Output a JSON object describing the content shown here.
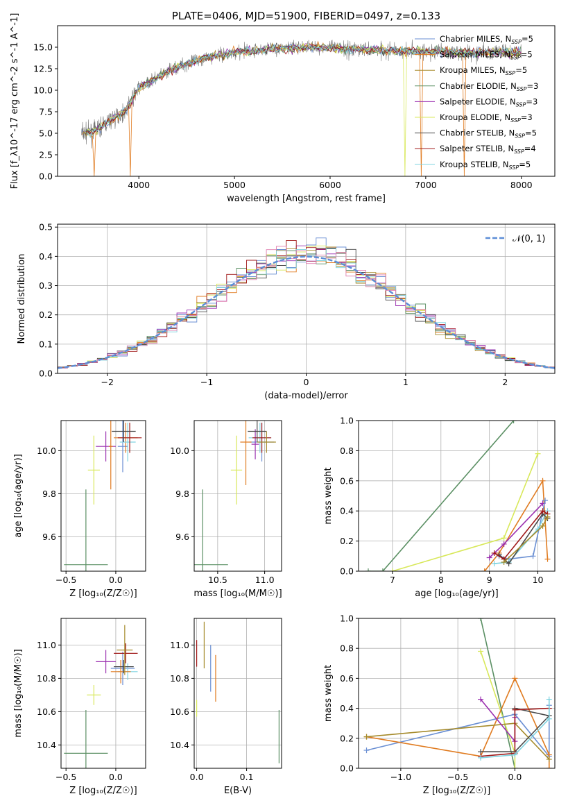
{
  "chart_data": [
    {
      "type": "line",
      "title": "PLATE=0406, MJD=51900, FIBERID=0497, z=0.133",
      "xlabel": "wavelength [Angstrom, rest frame]",
      "ylabel": "Flux [f_λ10^-17 erg cm^-2 s^-1 A^-1]",
      "xlim": [
        3150,
        8350
      ],
      "ylim": [
        0,
        17.5
      ],
      "xticks": [
        4000,
        5000,
        6000,
        7000,
        8000
      ],
      "yticks": [
        0.0,
        2.5,
        5.0,
        7.5,
        10.0,
        12.5,
        15.0
      ],
      "data_color": "#777777",
      "data_range": [
        3400,
        8000
      ],
      "continuum": {
        "x": [
          3400,
          3550,
          3700,
          3850,
          4000,
          4200,
          4400,
          4700,
          5000,
          5400,
          5800,
          6200,
          6600,
          7000,
          7400,
          7800,
          8000
        ],
        "y": [
          5.0,
          5.3,
          6.5,
          7.5,
          10.3,
          11.5,
          12.7,
          13.8,
          14.4,
          14.8,
          15.0,
          14.8,
          14.6,
          14.5,
          14.4,
          14.4,
          14.4
        ]
      },
      "series": [
        {
          "name": "Chabrier MILES, N_SSP=5",
          "color": "#6a8fd3"
        },
        {
          "name": "Salpeter MILES, N_SSP=5",
          "color": "#e07b20"
        },
        {
          "name": "Kroupa MILES, N_SSP=5",
          "color": "#a58a2a"
        },
        {
          "name": "Chabrier ELODIE, N_SSP=3",
          "color": "#5a8f63"
        },
        {
          "name": "Salpeter ELODIE, N_SSP=3",
          "color": "#9b30b0"
        },
        {
          "name": "Kroupa ELODIE, N_SSP=3",
          "color": "#d8e85a"
        },
        {
          "name": "Chabrier STELIB, N_SSP=5",
          "color": "#4a4a4a"
        },
        {
          "name": "Salpeter STELIB, N_SSP=4",
          "color": "#a01818"
        },
        {
          "name": "Kroupa STELIB, N_SSP=5",
          "color": "#7fd3e0"
        }
      ],
      "legend": {
        "placement": "right",
        "entries": [
          {
            "pre": "Chabrier MILES, N",
            "sub": "SSP",
            "post": "=5"
          },
          {
            "pre": "Salpeter MILES, N",
            "sub": "SSP",
            "post": "=5"
          },
          {
            "pre": "Kroupa MILES, N",
            "sub": "SSP",
            "post": "=5"
          },
          {
            "pre": "Chabrier ELODIE, N",
            "sub": "SSP",
            "post": "=3"
          },
          {
            "pre": "Salpeter ELODIE, N",
            "sub": "SSP",
            "post": "=3"
          },
          {
            "pre": "Kroupa ELODIE, N",
            "sub": "SSP",
            "post": "=3"
          },
          {
            "pre": "Chabrier STELIB, N",
            "sub": "SSP",
            "post": "=5"
          },
          {
            "pre": "Salpeter STELIB, N",
            "sub": "SSP",
            "post": "=4"
          },
          {
            "pre": "Kroupa STELIB, N",
            "sub": "SSP",
            "post": "=5"
          }
        ]
      },
      "drops": [
        {
          "x": 3530,
          "series": 1
        },
        {
          "x": 3905,
          "series": 1
        },
        {
          "x": 6780,
          "series": 5
        },
        {
          "x": 6950,
          "series": 1
        },
        {
          "x": 7405,
          "series": 1
        }
      ]
    },
    {
      "type": "histogram",
      "xlabel": "(data-model)/error",
      "ylabel": "Normed distribution",
      "xlim": [
        -2.5,
        2.5
      ],
      "ylim": [
        0,
        0.51
      ],
      "xticks": [
        -2,
        -1,
        0,
        1,
        2
      ],
      "yticks": [
        0.0,
        0.1,
        0.2,
        0.3,
        0.4,
        0.5
      ],
      "grid": true,
      "bin_width": 0.1,
      "bin_start": -2.5,
      "reference": {
        "label": "𝒩(0, 1)",
        "color": "#5b8dd6",
        "style": "dashed",
        "mean": 0,
        "sigma": 1
      },
      "legend_placement": "top-right"
    },
    {
      "type": "scatter",
      "xlabel": "Z [log₁₀(Z/Z☉)]",
      "ylabel": "age  [log₁₀(age/yr)]",
      "xlim": [
        -0.55,
        0.3
      ],
      "ylim": [
        9.44,
        10.14
      ],
      "xticks": [
        -0.5,
        0.0
      ],
      "yticks": [
        9.6,
        9.8,
        10.0
      ],
      "grid": true,
      "points": [
        {
          "x": 0.07,
          "y": 10.02,
          "ex": 0.05,
          "ey": 0.12,
          "c": 0
        },
        {
          "x": 0.1,
          "y": 10.06,
          "ex": 0.12,
          "ey": 0.07,
          "c": 1
        },
        {
          "x": 0.12,
          "y": 10.04,
          "ex": 0.08,
          "ey": 0.09,
          "c": 8
        },
        {
          "x": -0.1,
          "y": 10.02,
          "ex": 0.1,
          "ey": 0.07,
          "c": 4
        },
        {
          "x": -0.22,
          "y": 9.91,
          "ex": 0.06,
          "ey": 0.16,
          "c": 5
        },
        {
          "x": -0.3,
          "y": 9.47,
          "ex": 0.22,
          "ey": 0.35,
          "c": 3
        },
        {
          "x": 0.14,
          "y": 10.06,
          "ex": 0.12,
          "ey": 0.07,
          "c": 7
        },
        {
          "x": -0.05,
          "y": 10.02,
          "ex": 0.02,
          "ey": 0.2,
          "c": 1
        },
        {
          "x": 0.08,
          "y": 10.09,
          "ex": 0.12,
          "ey": 0.05,
          "c": 6
        }
      ]
    },
    {
      "type": "scatter",
      "xlabel": "mass [log₁₀(M/M☉)]",
      "ylabel": "",
      "xlim": [
        10.25,
        11.18
      ],
      "ylim": [
        9.44,
        10.14
      ],
      "xticks": [
        10.5,
        11.0
      ],
      "yticks": [
        9.6,
        9.8,
        10.0
      ],
      "grid": true,
      "points": [
        {
          "x": 10.97,
          "y": 10.04,
          "ex": 0.13,
          "ey": 0.09,
          "c": 0
        },
        {
          "x": 10.95,
          "y": 10.06,
          "ex": 0.12,
          "ey": 0.07,
          "c": 8
        },
        {
          "x": 10.9,
          "y": 10.03,
          "ex": 0.04,
          "ey": 0.07,
          "c": 4
        },
        {
          "x": 10.7,
          "y": 9.91,
          "ex": 0.06,
          "ey": 0.16,
          "c": 5
        },
        {
          "x": 10.34,
          "y": 9.47,
          "ex": 0.27,
          "ey": 0.35,
          "c": 3
        },
        {
          "x": 10.97,
          "y": 10.06,
          "ex": 0.1,
          "ey": 0.07,
          "c": 7
        },
        {
          "x": 10.8,
          "y": 10.04,
          "ex": 0.06,
          "ey": 0.2,
          "c": 1
        },
        {
          "x": 10.92,
          "y": 10.09,
          "ex": 0.1,
          "ey": 0.05,
          "c": 6
        },
        {
          "x": 11.02,
          "y": 10.04,
          "ex": 0.1,
          "ey": 0.05,
          "c": 2
        }
      ]
    },
    {
      "type": "line",
      "xlabel": "age  [log₁₀(age/yr)]",
      "ylabel": "mass weight",
      "xlim": [
        6.3,
        10.35
      ],
      "ylim": [
        0,
        1
      ],
      "xticks": [
        7,
        8,
        9,
        10
      ],
      "yticks": [
        0.0,
        0.2,
        0.4,
        0.6,
        0.8,
        1.0
      ],
      "grid": true,
      "series": [
        {
          "c": 3,
          "x": [
            6.5,
            6.8,
            9.5
          ],
          "y": [
            0.0,
            0.0,
            1.0
          ]
        },
        {
          "c": 5,
          "x": [
            7.0,
            9.3,
            10.0
          ],
          "y": [
            0.0,
            0.22,
            0.78
          ]
        },
        {
          "c": 1,
          "x": [
            8.9,
            9.2,
            10.1,
            10.2
          ],
          "y": [
            0.0,
            0.12,
            0.6,
            0.08
          ]
        },
        {
          "c": 4,
          "x": [
            9.0,
            9.3,
            10.1
          ],
          "y": [
            0.09,
            0.18,
            0.45
          ]
        },
        {
          "c": 0,
          "x": [
            9.2,
            9.4,
            9.9,
            10.15
          ],
          "y": [
            0.1,
            0.08,
            0.1,
            0.47
          ]
        },
        {
          "c": 8,
          "x": [
            9.1,
            9.4,
            10.0,
            10.2
          ],
          "y": [
            0.05,
            0.06,
            0.28,
            0.4
          ]
        },
        {
          "c": 6,
          "x": [
            9.2,
            9.4,
            10.1,
            10.2
          ],
          "y": [
            0.11,
            0.05,
            0.38,
            0.35
          ]
        },
        {
          "c": 7,
          "x": [
            9.1,
            9.3,
            10.1,
            10.2
          ],
          "y": [
            0.12,
            0.08,
            0.4,
            0.38
          ]
        },
        {
          "c": 2,
          "x": [
            9.3,
            10.1,
            10.2
          ],
          "y": [
            0.06,
            0.3,
            0.36
          ]
        }
      ]
    },
    {
      "type": "scatter",
      "xlabel": "Z [log₁₀(Z/Z☉)]",
      "ylabel": "mass [log₁₀(M/M☉)]",
      "xlim": [
        -0.55,
        0.3
      ],
      "ylim": [
        10.26,
        11.16
      ],
      "xticks": [
        -0.5,
        0.0
      ],
      "yticks": [
        10.4,
        10.6,
        10.8,
        11.0
      ],
      "grid": true,
      "points": [
        {
          "x": 0.07,
          "y": 10.86,
          "ex": 0.12,
          "ey": 0.1,
          "c": 0
        },
        {
          "x": 0.1,
          "y": 10.95,
          "ex": 0.12,
          "ey": 0.06,
          "c": 7
        },
        {
          "x": 0.12,
          "y": 10.84,
          "ex": 0.1,
          "ey": 0.05,
          "c": 8
        },
        {
          "x": -0.1,
          "y": 10.9,
          "ex": 0.1,
          "ey": 0.07,
          "c": 4
        },
        {
          "x": -0.22,
          "y": 10.7,
          "ex": 0.07,
          "ey": 0.06,
          "c": 5
        },
        {
          "x": -0.3,
          "y": 10.35,
          "ex": 0.22,
          "ey": 0.26,
          "c": 3
        },
        {
          "x": 0.05,
          "y": 10.84,
          "ex": 0.1,
          "ey": 0.07,
          "c": 1
        },
        {
          "x": 0.08,
          "y": 10.87,
          "ex": 0.1,
          "ey": 0.04,
          "c": 6
        },
        {
          "x": 0.09,
          "y": 10.97,
          "ex": 0.08,
          "ey": 0.15,
          "c": 2
        }
      ]
    },
    {
      "type": "scatter",
      "xlabel": "E(B-V)",
      "ylabel": "",
      "xlim": [
        -0.005,
        0.17
      ],
      "ylim": [
        10.26,
        11.16
      ],
      "xticks": [
        0.0,
        0.1
      ],
      "yticks": [
        10.4,
        10.6,
        10.8,
        11.0
      ],
      "grid": true,
      "points": [
        {
          "x": 0.0,
          "y": 10.95,
          "ex": 0,
          "ey": 0.08,
          "c": 7
        },
        {
          "x": 0.0,
          "y": 10.62,
          "ex": 0,
          "ey": 0.05,
          "c": 5
        },
        {
          "x": 0.015,
          "y": 11.0,
          "ex": 0,
          "ey": 0.14,
          "c": 2
        },
        {
          "x": 0.028,
          "y": 10.86,
          "ex": 0,
          "ey": 0.14,
          "c": 0
        },
        {
          "x": 0.038,
          "y": 10.8,
          "ex": 0,
          "ey": 0.14,
          "c": 1
        },
        {
          "x": 0.165,
          "y": 10.45,
          "ex": 0,
          "ey": 0.16,
          "c": 3
        }
      ]
    },
    {
      "type": "line",
      "xlabel": "Z [log₁₀(Z/Z☉)]",
      "ylabel": "mass weight",
      "xlim": [
        -1.37,
        0.35
      ],
      "ylim": [
        0,
        1
      ],
      "xticks": [
        -1.0,
        -0.5,
        0.0
      ],
      "yticks": [
        0.0,
        0.2,
        0.4,
        0.6,
        0.8,
        1.0
      ],
      "grid": true,
      "series": [
        {
          "c": 3,
          "x": [
            -0.3,
            0.0
          ],
          "y": [
            1.0,
            0.0
          ]
        },
        {
          "c": 5,
          "x": [
            -0.3,
            0.0,
            0.0
          ],
          "y": [
            0.78,
            0.1,
            0.0
          ]
        },
        {
          "c": 0,
          "x": [
            -1.3,
            0.0,
            0.3,
            0.3
          ],
          "y": [
            0.12,
            0.36,
            0.08,
            0.42
          ]
        },
        {
          "c": 1,
          "x": [
            -1.3,
            -0.3,
            0.0,
            0.3,
            0.3
          ],
          "y": [
            0.21,
            0.08,
            0.6,
            0.09,
            0.0
          ]
        },
        {
          "c": 2,
          "x": [
            -1.3,
            0.0,
            0.3
          ],
          "y": [
            0.21,
            0.3,
            0.06
          ]
        },
        {
          "c": 4,
          "x": [
            -0.3,
            0.0,
            0.0
          ],
          "y": [
            0.46,
            0.18,
            0.34
          ]
        },
        {
          "c": 6,
          "x": [
            -0.3,
            0.0,
            0.3,
            0.0
          ],
          "y": [
            0.11,
            0.11,
            0.35,
            0.4
          ]
        },
        {
          "c": 7,
          "x": [
            -0.3,
            0.0,
            0.0,
            0.3
          ],
          "y": [
            0.08,
            0.1,
            0.39,
            0.4
          ]
        },
        {
          "c": 8,
          "x": [
            -0.3,
            0.0,
            0.3,
            0.3
          ],
          "y": [
            0.07,
            0.09,
            0.33,
            0.46
          ]
        }
      ]
    }
  ]
}
